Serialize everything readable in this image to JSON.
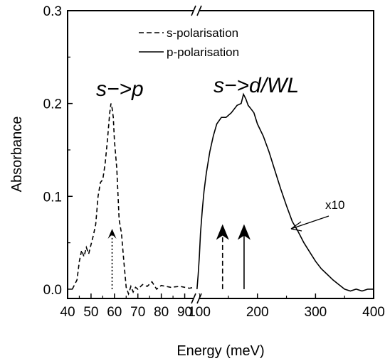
{
  "chart_data": {
    "type": "line",
    "xlabel": "Energy (meV)",
    "ylabel": "Absorbance",
    "x_axis": {
      "broken": true,
      "segments": [
        {
          "xlim": [
            40,
            95
          ],
          "ticks": [
            "40",
            "50",
            "60",
            "70",
            "80",
            "90"
          ]
        },
        {
          "xlim": [
            95,
            400
          ],
          "ticks": [
            "100",
            "200",
            "300",
            "400"
          ]
        }
      ]
    },
    "ylim": [
      -0.01,
      0.3
    ],
    "y_ticks": [
      "0.0",
      "0.1",
      "0.2",
      "0.3"
    ],
    "legend": {
      "placement": "top-center",
      "entries": [
        {
          "label": "s-polarisation",
          "style": "dashed"
        },
        {
          "label": "p-polarisation",
          "style": "solid"
        }
      ]
    },
    "series": [
      {
        "name": "s-polarisation",
        "style": "dashed",
        "x": [
          42,
          43,
          44,
          45,
          46,
          47,
          48,
          49,
          50,
          51,
          52,
          53,
          54,
          55,
          56,
          57,
          58,
          58.5,
          59,
          59.5,
          60,
          61,
          62,
          63,
          64,
          65,
          66,
          67,
          68,
          69,
          70,
          72,
          74,
          76,
          78,
          80,
          84,
          88,
          92,
          94
        ],
        "values": [
          0.0,
          0.005,
          0.01,
          0.03,
          0.042,
          0.035,
          0.045,
          0.038,
          0.048,
          0.058,
          0.07,
          0.1,
          0.115,
          0.118,
          0.135,
          0.16,
          0.19,
          0.2,
          0.195,
          0.185,
          0.16,
          0.13,
          0.075,
          0.06,
          0.03,
          0.002,
          -0.005,
          0.003,
          -0.003,
          0.002,
          0.0,
          0.005,
          0.003,
          0.008,
          0.0,
          0.004,
          0.002,
          0.003,
          0.001,
          0.002
        ]
      },
      {
        "name": "p-polarisation",
        "style": "solid",
        "scale_note": "x10",
        "x": [
          96,
          98,
          100,
          102,
          105,
          108,
          112,
          118,
          124,
          130,
          138,
          146,
          155,
          165,
          172,
          176,
          180,
          184,
          188,
          194,
          200,
          210,
          220,
          230,
          240,
          250,
          260,
          270,
          280,
          290,
          300,
          310,
          320,
          330,
          340,
          350,
          360,
          370,
          380,
          390,
          400
        ],
        "values": [
          0.0,
          0.015,
          0.035,
          0.06,
          0.085,
          0.105,
          0.125,
          0.148,
          0.165,
          0.178,
          0.185,
          0.185,
          0.19,
          0.198,
          0.2,
          0.21,
          0.205,
          0.198,
          0.195,
          0.19,
          0.178,
          0.165,
          0.148,
          0.128,
          0.108,
          0.09,
          0.073,
          0.062,
          0.05,
          0.04,
          0.03,
          0.022,
          0.016,
          0.01,
          0.005,
          0.0,
          -0.002,
          0.0,
          -0.002,
          0.0,
          0.0
        ]
      }
    ],
    "arrows": [
      {
        "x": 59,
        "from": 0.0,
        "to": 0.065,
        "style": "dotted"
      },
      {
        "x": 140,
        "from": 0.0,
        "to": 0.07,
        "style": "dashed"
      },
      {
        "x": 177,
        "from": 0.0,
        "to": 0.07,
        "style": "solid"
      }
    ],
    "annotations": [
      {
        "text": "s−>p"
      },
      {
        "text": "s−>d/WL"
      },
      {
        "text": "x10"
      }
    ]
  }
}
